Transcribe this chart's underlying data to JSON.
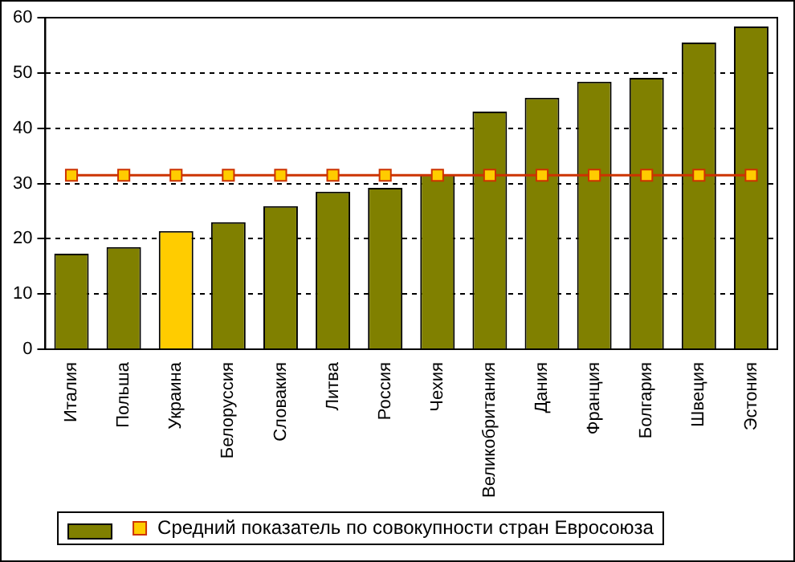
{
  "chart_data": {
    "type": "bar",
    "categories": [
      "Италия",
      "Польша",
      "Украина",
      "Белоруссия",
      "Словакия",
      "Литва",
      "Россия",
      "Чехия",
      "Великобритания",
      "Дания",
      "Франция",
      "Болгария",
      "Швеция",
      "Эстония"
    ],
    "series": [
      {
        "colors": [
          "#808000",
          "#808000",
          "#ffcc00",
          "#808000",
          "#808000",
          "#808000",
          "#808000",
          "#808000",
          "#808000",
          "#808000",
          "#808000",
          "#808000",
          "#808000",
          "#808000"
        ],
        "values": [
          17.3,
          18.5,
          21.4,
          23.0,
          25.9,
          28.5,
          29.2,
          31.6,
          43.0,
          45.5,
          48.4,
          49.1,
          55.5,
          58.4
        ]
      },
      {
        "type": "line",
        "name": "Средний показатель по совокупности стран Евросоюза",
        "color": "#cc3300",
        "values": [
          31.5,
          31.5,
          31.5,
          31.5,
          31.5,
          31.5,
          31.5,
          31.5,
          31.5,
          31.5,
          31.5,
          31.5,
          31.5,
          31.5
        ]
      }
    ],
    "ylim": [
      0,
      60
    ],
    "yticks": [
      0,
      10,
      20,
      30,
      40,
      50,
      60
    ],
    "grid": "y",
    "legend": "bottom",
    "marker": "square",
    "line_style": "solid"
  }
}
